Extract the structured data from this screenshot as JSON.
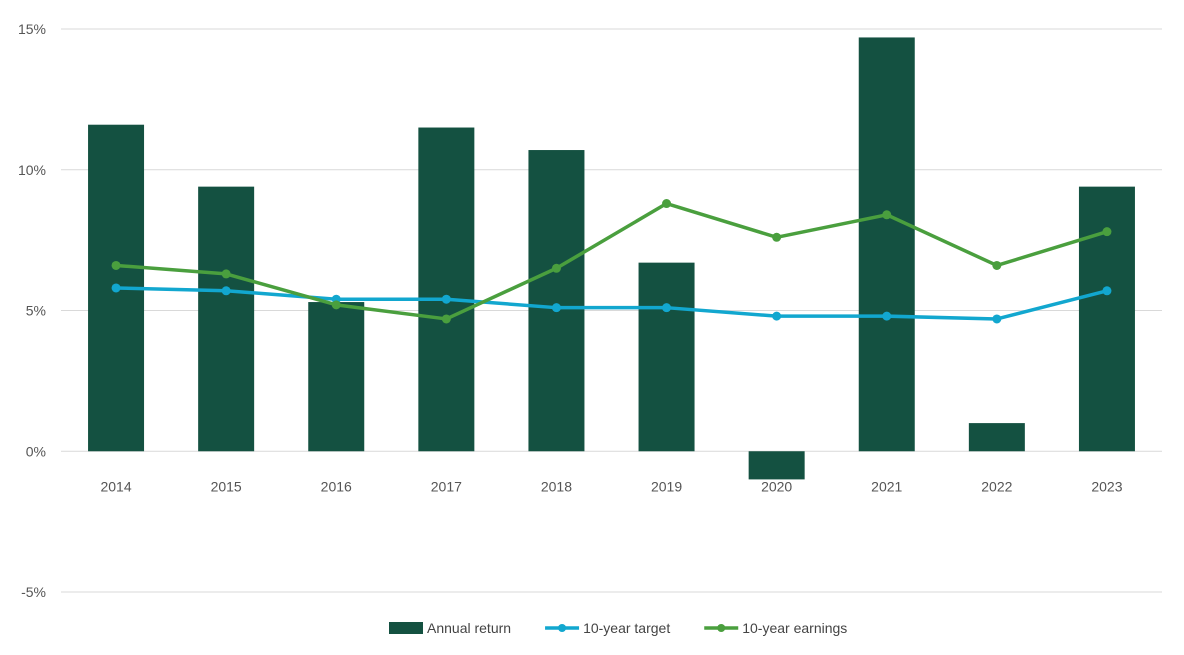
{
  "chart_data": {
    "type": "bar",
    "categories": [
      "2014",
      "2015",
      "2016",
      "2017",
      "2018",
      "2019",
      "2020",
      "2021",
      "2022",
      "2023"
    ],
    "series": [
      {
        "name": "Annual return",
        "kind": "bar",
        "color": "#145141",
        "values": [
          11.6,
          9.4,
          5.3,
          11.5,
          10.7,
          6.7,
          -1.0,
          14.7,
          1.0,
          9.4
        ]
      },
      {
        "name": "10-year target",
        "kind": "line",
        "color": "#12A7CF",
        "values": [
          5.8,
          5.7,
          5.4,
          5.4,
          5.1,
          5.1,
          4.8,
          4.8,
          4.7,
          5.7
        ]
      },
      {
        "name": "10-year earnings",
        "kind": "line",
        "color": "#4A9F3E",
        "values": [
          6.6,
          6.3,
          5.2,
          4.7,
          6.5,
          8.8,
          7.6,
          8.4,
          6.6,
          7.8
        ]
      }
    ],
    "y_ticks": [
      "15%",
      "10%",
      "5%",
      "0%",
      "-5%"
    ],
    "y_tick_values": [
      15,
      10,
      5,
      0,
      -5
    ],
    "ylim": [
      -5,
      15
    ],
    "grid": true,
    "legend_position": "bottom-center"
  }
}
